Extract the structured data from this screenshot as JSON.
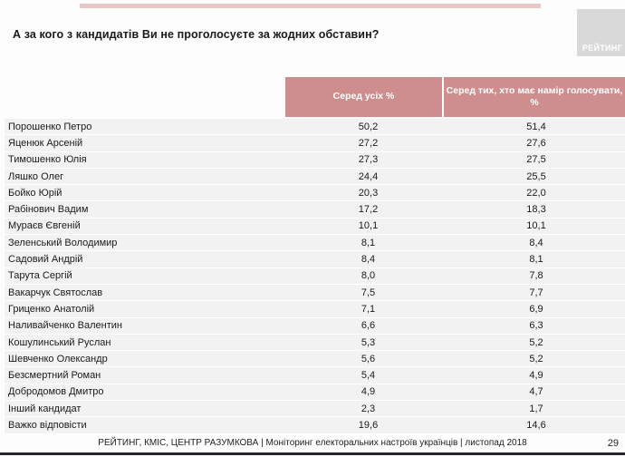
{
  "slide": {
    "title": "А за кого з кандидатів Ви не проголосуєте за жодних обставин?",
    "logo_text": "РЕЙТИНГ",
    "footer": "РЕЙТИНГ, КМІС, ЦЕНТР РАЗУМКОВА |  Моніторинг електоральних настроїв українців | листопад 2018",
    "page_number": "29"
  },
  "colors": {
    "header_bg": "#cf8e8e",
    "top_accent": "#e8c7c7",
    "row_bg": "#f2f2f2",
    "logo_bg": "#d9d9d9",
    "bottom_line": "#26262e"
  },
  "chart_data": {
    "type": "table",
    "title": "А за кого з кандидатів Ви не проголосуєте за жодних обставин?",
    "columns": [
      "",
      "Серед усіх %",
      "Серед тих, хто має намір голосувати, %"
    ],
    "rows": [
      {
        "name": "Порошенко Петро",
        "all": "50,2",
        "voters": "51,4"
      },
      {
        "name": "Яценюк Арсеній",
        "all": "27,2",
        "voters": "27,6"
      },
      {
        "name": "Тимошенко Юлія",
        "all": "27,3",
        "voters": "27,5"
      },
      {
        "name": "Ляшко Олег",
        "all": "24,4",
        "voters": "25,5"
      },
      {
        "name": "Бойко Юрій",
        "all": "20,3",
        "voters": "22,0"
      },
      {
        "name": "Рабінович Вадим",
        "all": "17,2",
        "voters": "18,3"
      },
      {
        "name": "Мураєв Євгеній",
        "all": "10,1",
        "voters": "10,1"
      },
      {
        "name": "Зеленський Володимир",
        "all": "8,1",
        "voters": "8,4"
      },
      {
        "name": "Садовий Андрій",
        "all": "8,4",
        "voters": "8,1"
      },
      {
        "name": "Тарута Сергій",
        "all": "8,0",
        "voters": "7,8"
      },
      {
        "name": "Вакарчук Святослав",
        "all": "7,5",
        "voters": "7,7"
      },
      {
        "name": "Гриценко Анатолій",
        "all": "7,1",
        "voters": "6,9"
      },
      {
        "name": "Наливайченко Валентин",
        "all": "6,6",
        "voters": "6,3"
      },
      {
        "name": "Кошулинський Руслан",
        "all": "5,3",
        "voters": "5,2"
      },
      {
        "name": "Шевченко Олександр",
        "all": "5,6",
        "voters": "5,2"
      },
      {
        "name": "Безсмертний Роман",
        "all": "5,4",
        "voters": "4,9"
      },
      {
        "name": "Добродомов Дмитро",
        "all": "4,9",
        "voters": "4,7"
      },
      {
        "name": "Інший кандидат",
        "all": "2,3",
        "voters": "1,7"
      },
      {
        "name": "Важко відповісти",
        "all": "19,6",
        "voters": "14,6"
      }
    ]
  }
}
